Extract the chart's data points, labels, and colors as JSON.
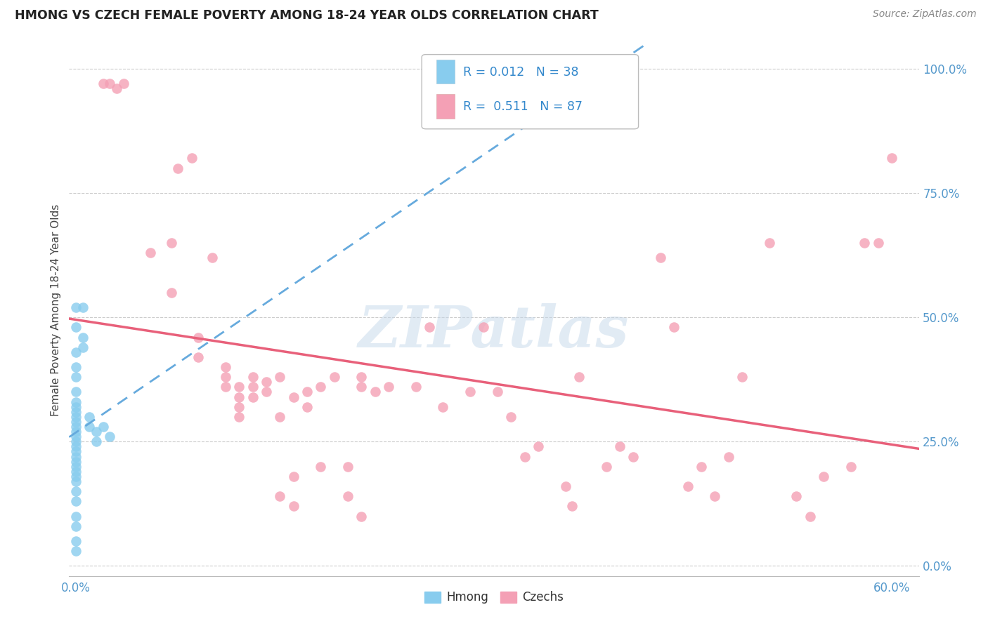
{
  "title": "HMONG VS CZECH FEMALE POVERTY AMONG 18-24 YEAR OLDS CORRELATION CHART",
  "source": "Source: ZipAtlas.com",
  "ylabel": "Female Poverty Among 18-24 Year Olds",
  "x_tick_labels": [
    "0.0%",
    "",
    "",
    "",
    "",
    "",
    "60.0%"
  ],
  "x_tick_values": [
    0.0,
    0.1,
    0.2,
    0.3,
    0.4,
    0.5,
    0.6
  ],
  "y_tick_labels_right": [
    "0.0%",
    "25.0%",
    "50.0%",
    "75.0%",
    "100.0%"
  ],
  "y_tick_values": [
    0.0,
    0.25,
    0.5,
    0.75,
    1.0
  ],
  "xlim": [
    -0.005,
    0.62
  ],
  "ylim": [
    -0.02,
    1.05
  ],
  "watermark": "ZIPatlas",
  "legend_labels": [
    "Hmong",
    "Czechs"
  ],
  "hmong_color": "#88ccee",
  "czech_color": "#f4a0b5",
  "hmong_line_color": "#66aadd",
  "czech_line_color": "#e8607a",
  "hmong_scatter": [
    [
      0.0,
      0.52
    ],
    [
      0.0,
      0.48
    ],
    [
      0.0,
      0.43
    ],
    [
      0.0,
      0.4
    ],
    [
      0.0,
      0.38
    ],
    [
      0.0,
      0.35
    ],
    [
      0.0,
      0.33
    ],
    [
      0.0,
      0.32
    ],
    [
      0.0,
      0.31
    ],
    [
      0.0,
      0.3
    ],
    [
      0.0,
      0.29
    ],
    [
      0.0,
      0.28
    ],
    [
      0.0,
      0.27
    ],
    [
      0.0,
      0.26
    ],
    [
      0.0,
      0.25
    ],
    [
      0.0,
      0.24
    ],
    [
      0.0,
      0.23
    ],
    [
      0.0,
      0.22
    ],
    [
      0.0,
      0.21
    ],
    [
      0.0,
      0.2
    ],
    [
      0.0,
      0.19
    ],
    [
      0.0,
      0.18
    ],
    [
      0.0,
      0.17
    ],
    [
      0.0,
      0.15
    ],
    [
      0.0,
      0.13
    ],
    [
      0.0,
      0.1
    ],
    [
      0.0,
      0.08
    ],
    [
      0.0,
      0.05
    ],
    [
      0.0,
      0.03
    ],
    [
      0.005,
      0.52
    ],
    [
      0.005,
      0.46
    ],
    [
      0.005,
      0.44
    ],
    [
      0.01,
      0.3
    ],
    [
      0.01,
      0.28
    ],
    [
      0.015,
      0.27
    ],
    [
      0.015,
      0.25
    ],
    [
      0.02,
      0.28
    ],
    [
      0.025,
      0.26
    ]
  ],
  "czech_scatter": [
    [
      0.02,
      0.97
    ],
    [
      0.025,
      0.97
    ],
    [
      0.03,
      0.96
    ],
    [
      0.035,
      0.97
    ],
    [
      0.055,
      0.63
    ],
    [
      0.07,
      0.65
    ],
    [
      0.07,
      0.55
    ],
    [
      0.075,
      0.8
    ],
    [
      0.085,
      0.82
    ],
    [
      0.09,
      0.46
    ],
    [
      0.09,
      0.42
    ],
    [
      0.1,
      0.62
    ],
    [
      0.11,
      0.4
    ],
    [
      0.11,
      0.38
    ],
    [
      0.11,
      0.36
    ],
    [
      0.12,
      0.36
    ],
    [
      0.12,
      0.34
    ],
    [
      0.12,
      0.32
    ],
    [
      0.12,
      0.3
    ],
    [
      0.13,
      0.38
    ],
    [
      0.13,
      0.36
    ],
    [
      0.13,
      0.34
    ],
    [
      0.14,
      0.37
    ],
    [
      0.14,
      0.35
    ],
    [
      0.15,
      0.38
    ],
    [
      0.15,
      0.3
    ],
    [
      0.15,
      0.14
    ],
    [
      0.16,
      0.34
    ],
    [
      0.16,
      0.18
    ],
    [
      0.16,
      0.12
    ],
    [
      0.17,
      0.35
    ],
    [
      0.17,
      0.32
    ],
    [
      0.18,
      0.36
    ],
    [
      0.18,
      0.2
    ],
    [
      0.19,
      0.38
    ],
    [
      0.2,
      0.2
    ],
    [
      0.2,
      0.14
    ],
    [
      0.21,
      0.38
    ],
    [
      0.21,
      0.36
    ],
    [
      0.21,
      0.1
    ],
    [
      0.22,
      0.35
    ],
    [
      0.23,
      0.36
    ],
    [
      0.25,
      0.36
    ],
    [
      0.26,
      0.48
    ],
    [
      0.27,
      0.32
    ],
    [
      0.29,
      0.35
    ],
    [
      0.3,
      0.48
    ],
    [
      0.31,
      0.35
    ],
    [
      0.32,
      0.3
    ],
    [
      0.33,
      0.22
    ],
    [
      0.34,
      0.24
    ],
    [
      0.36,
      0.16
    ],
    [
      0.365,
      0.12
    ],
    [
      0.37,
      0.38
    ],
    [
      0.39,
      0.2
    ],
    [
      0.4,
      0.24
    ],
    [
      0.41,
      0.22
    ],
    [
      0.43,
      0.62
    ],
    [
      0.44,
      0.48
    ],
    [
      0.45,
      0.16
    ],
    [
      0.46,
      0.2
    ],
    [
      0.47,
      0.14
    ],
    [
      0.48,
      0.22
    ],
    [
      0.49,
      0.38
    ],
    [
      0.51,
      0.65
    ],
    [
      0.53,
      0.14
    ],
    [
      0.54,
      0.1
    ],
    [
      0.55,
      0.18
    ],
    [
      0.57,
      0.2
    ],
    [
      0.58,
      0.65
    ],
    [
      0.59,
      0.65
    ],
    [
      0.6,
      0.82
    ]
  ]
}
